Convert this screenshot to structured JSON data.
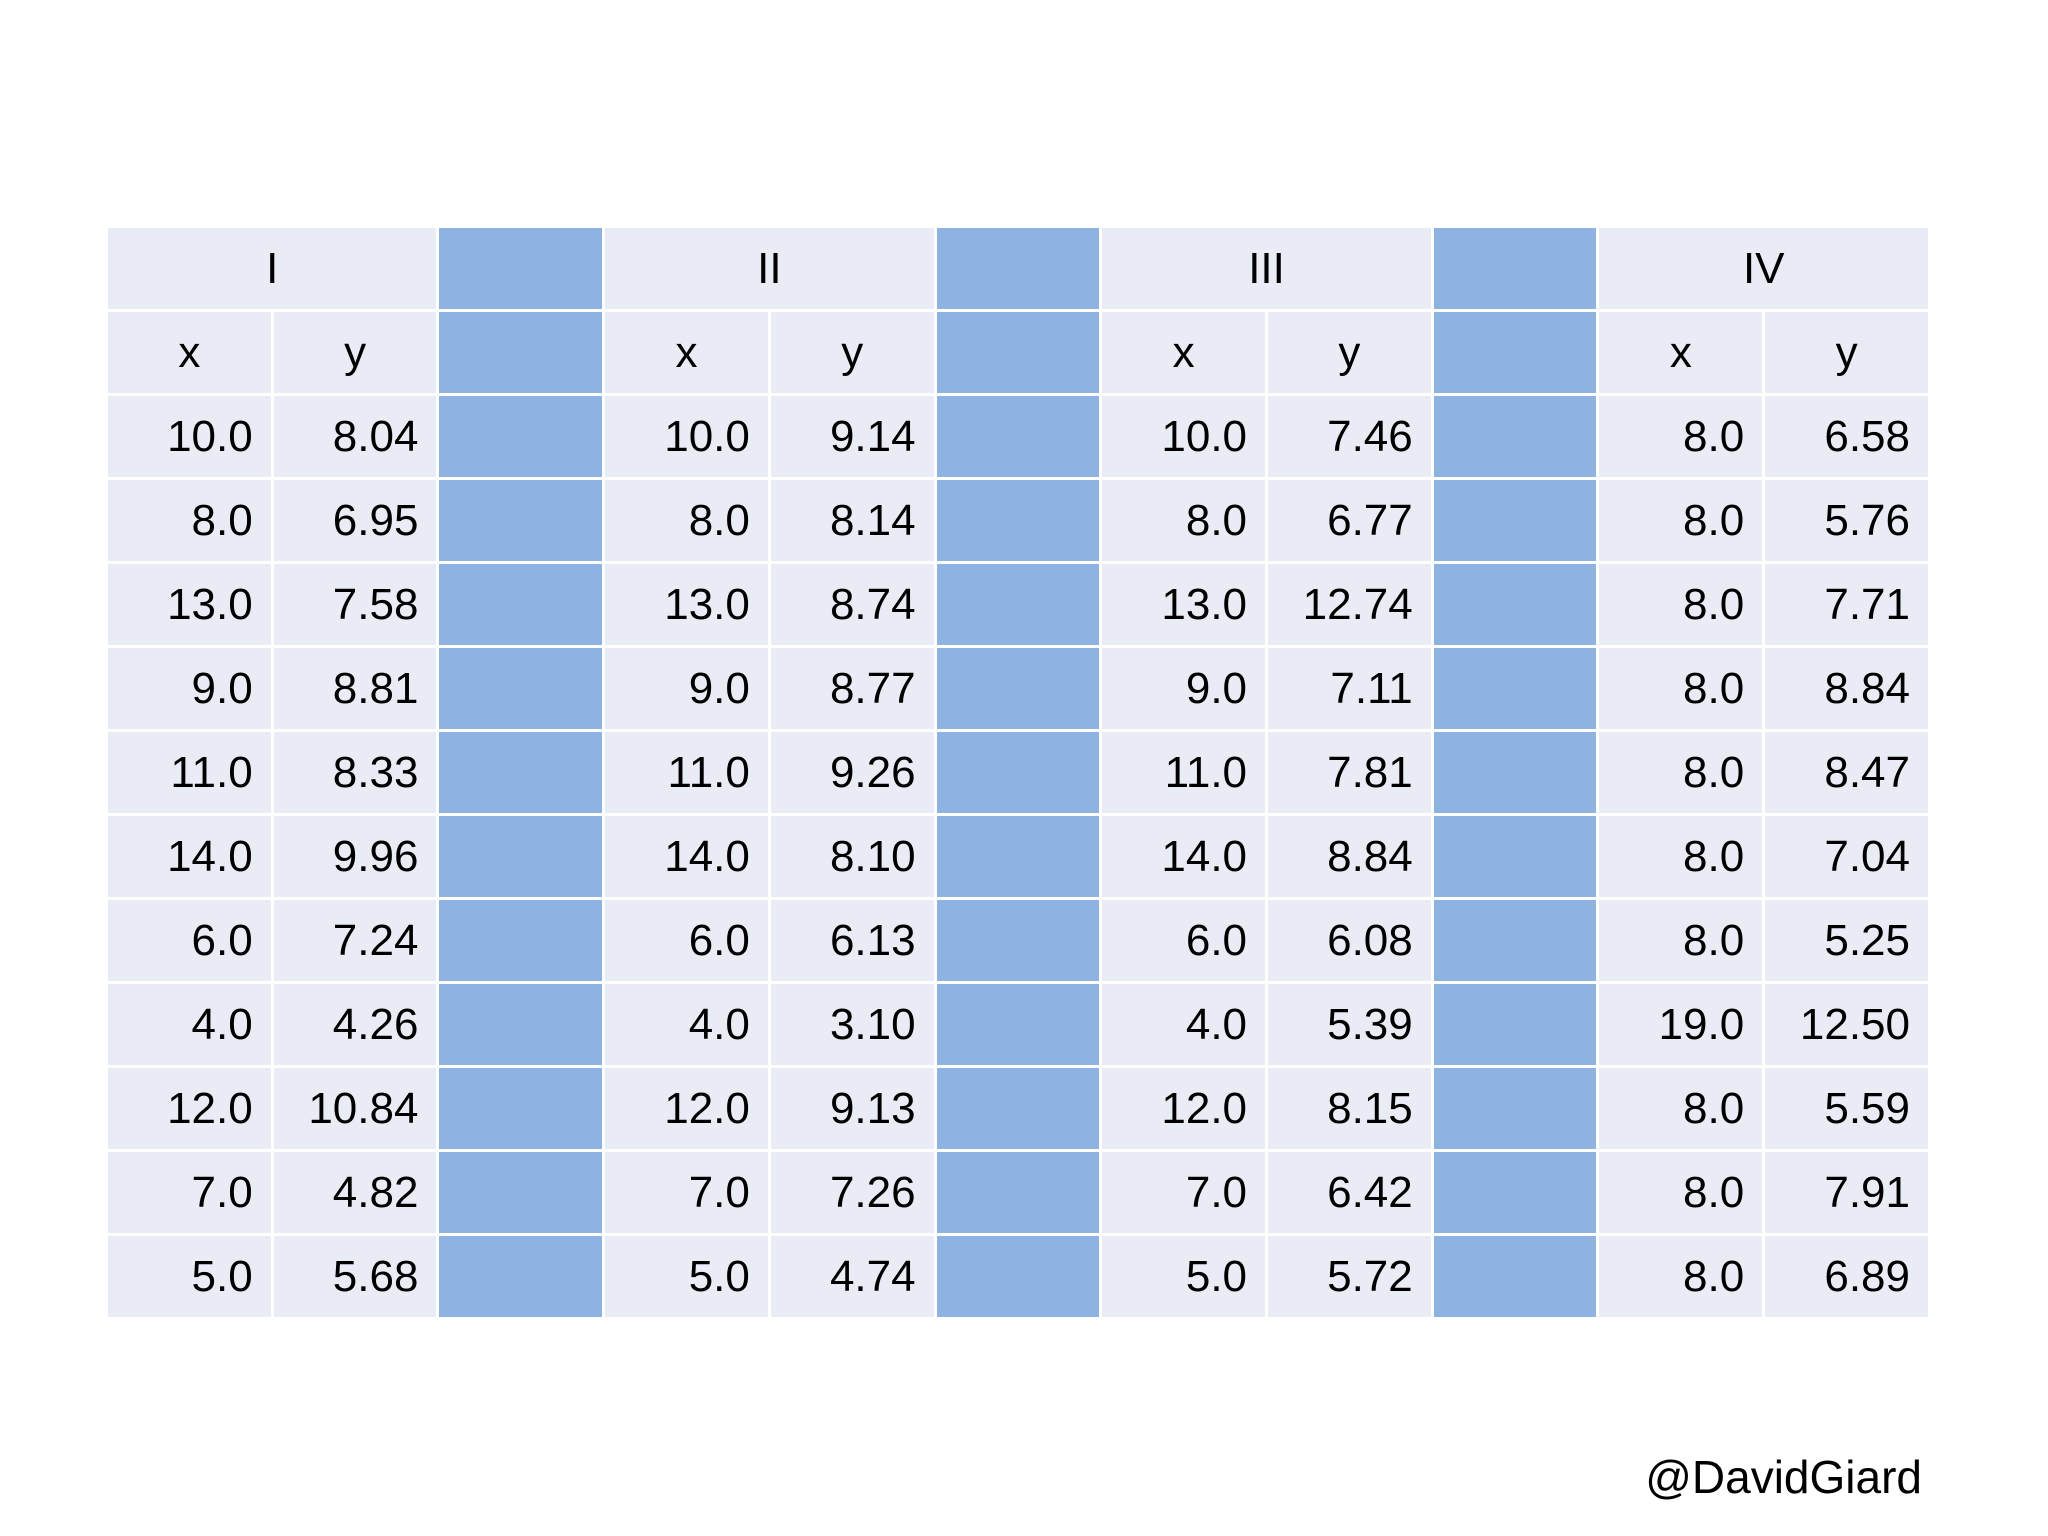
{
  "table": {
    "groups": [
      {
        "title": "I",
        "columns": [
          "x",
          "y"
        ],
        "rows": [
          [
            "10.0",
            "8.04"
          ],
          [
            "8.0",
            "6.95"
          ],
          [
            "13.0",
            "7.58"
          ],
          [
            "9.0",
            "8.81"
          ],
          [
            "11.0",
            "8.33"
          ],
          [
            "14.0",
            "9.96"
          ],
          [
            "6.0",
            "7.24"
          ],
          [
            "4.0",
            "4.26"
          ],
          [
            "12.0",
            "10.84"
          ],
          [
            "7.0",
            "4.82"
          ],
          [
            "5.0",
            "5.68"
          ]
        ]
      },
      {
        "title": "II",
        "columns": [
          "x",
          "y"
        ],
        "rows": [
          [
            "10.0",
            "9.14"
          ],
          [
            "8.0",
            "8.14"
          ],
          [
            "13.0",
            "8.74"
          ],
          [
            "9.0",
            "8.77"
          ],
          [
            "11.0",
            "9.26"
          ],
          [
            "14.0",
            "8.10"
          ],
          [
            "6.0",
            "6.13"
          ],
          [
            "4.0",
            "3.10"
          ],
          [
            "12.0",
            "9.13"
          ],
          [
            "7.0",
            "7.26"
          ],
          [
            "5.0",
            "4.74"
          ]
        ]
      },
      {
        "title": "III",
        "columns": [
          "x",
          "y"
        ],
        "rows": [
          [
            "10.0",
            "7.46"
          ],
          [
            "8.0",
            "6.77"
          ],
          [
            "13.0",
            "12.74"
          ],
          [
            "9.0",
            "7.11"
          ],
          [
            "11.0",
            "7.81"
          ],
          [
            "14.0",
            "8.84"
          ],
          [
            "6.0",
            "6.08"
          ],
          [
            "4.0",
            "5.39"
          ],
          [
            "12.0",
            "8.15"
          ],
          [
            "7.0",
            "6.42"
          ],
          [
            "5.0",
            "5.72"
          ]
        ]
      },
      {
        "title": "IV",
        "columns": [
          "x",
          "y"
        ],
        "rows": [
          [
            "8.0",
            "6.58"
          ],
          [
            "8.0",
            "5.76"
          ],
          [
            "8.0",
            "7.71"
          ],
          [
            "8.0",
            "8.84"
          ],
          [
            "8.0",
            "8.47"
          ],
          [
            "8.0",
            "7.04"
          ],
          [
            "8.0",
            "5.25"
          ],
          [
            "19.0",
            "12.50"
          ],
          [
            "8.0",
            "5.59"
          ],
          [
            "8.0",
            "7.91"
          ],
          [
            "8.0",
            "6.89"
          ]
        ]
      }
    ]
  },
  "footer": "@DavidGiard"
}
